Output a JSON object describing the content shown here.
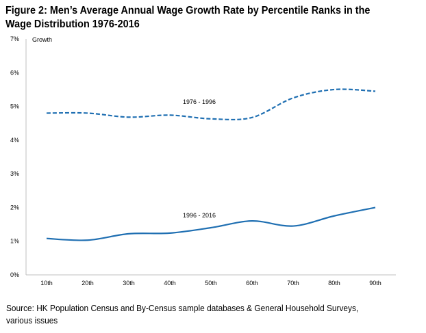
{
  "figure": {
    "title_line1": "Figure 2: Men’s Average Annual Wage Growth Rate by Percentile Ranks in the",
    "title_line2": "Wage Distribution 1976-2016",
    "source_line1": "Source: HK Population Census and By-Census sample databases & General Household Surveys,",
    "source_line2": "various issues"
  },
  "chart_data": {
    "type": "line",
    "ylabel": "Growth",
    "xlabel": "",
    "ylim": [
      0,
      7
    ],
    "yticks": [
      "0%",
      "1%",
      "2%",
      "3%",
      "4%",
      "5%",
      "6%",
      "7%"
    ],
    "categories": [
      "10th",
      "20th",
      "30th",
      "40th",
      "50th",
      "60th",
      "70th",
      "80th",
      "90th"
    ],
    "grid": false,
    "series": [
      {
        "name": "1976 - 1996",
        "style": "dashed",
        "color": "#1f6fb2",
        "values": [
          4.8,
          4.8,
          4.68,
          4.74,
          4.63,
          4.67,
          5.25,
          5.5,
          5.45
        ]
      },
      {
        "name": "1996 - 2016",
        "style": "solid",
        "color": "#1f6fb2",
        "values": [
          1.08,
          1.03,
          1.22,
          1.24,
          1.4,
          1.6,
          1.45,
          1.75,
          2.0
        ]
      }
    ]
  }
}
